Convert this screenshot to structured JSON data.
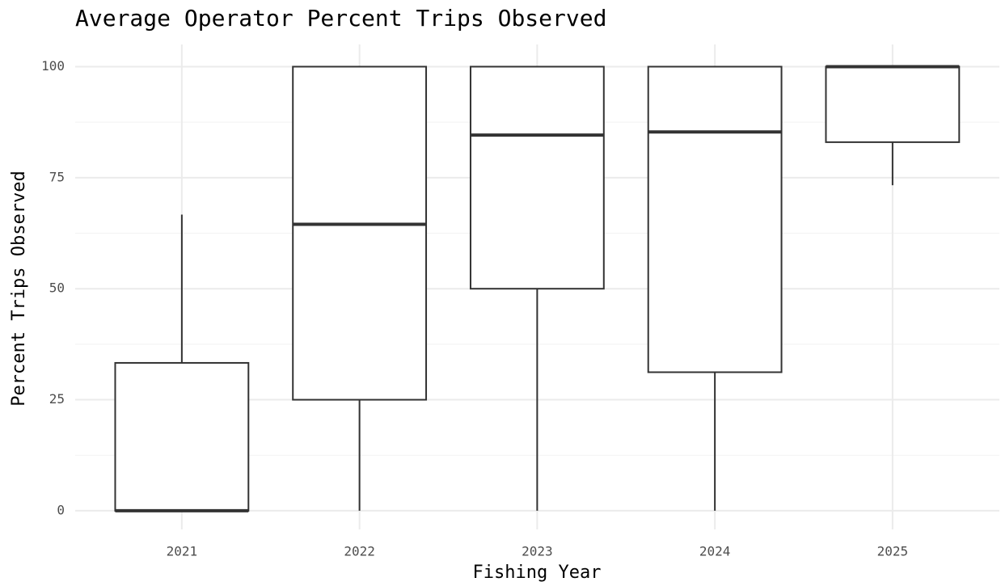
{
  "chart_data": {
    "type": "boxplot",
    "title": "Average Operator Percent Trips Observed",
    "x_label": "Fishing Year",
    "y_label": "Percent Trips Observed",
    "categories": [
      "2021",
      "2022",
      "2023",
      "2024",
      "2025"
    ],
    "min": [
      0,
      0,
      0,
      0,
      73.3
    ],
    "q1": [
      0,
      25,
      50,
      31.2,
      83
    ],
    "median": [
      0,
      64.5,
      84.6,
      85.3,
      100
    ],
    "q3": [
      33.3,
      100,
      100,
      100,
      100
    ],
    "max": [
      66.7,
      100,
      100,
      100,
      100
    ],
    "color": "#333333",
    "ylim": [
      -4.2,
      105
    ],
    "yticks": [
      0,
      25,
      50,
      75,
      100
    ],
    "grid": true
  }
}
